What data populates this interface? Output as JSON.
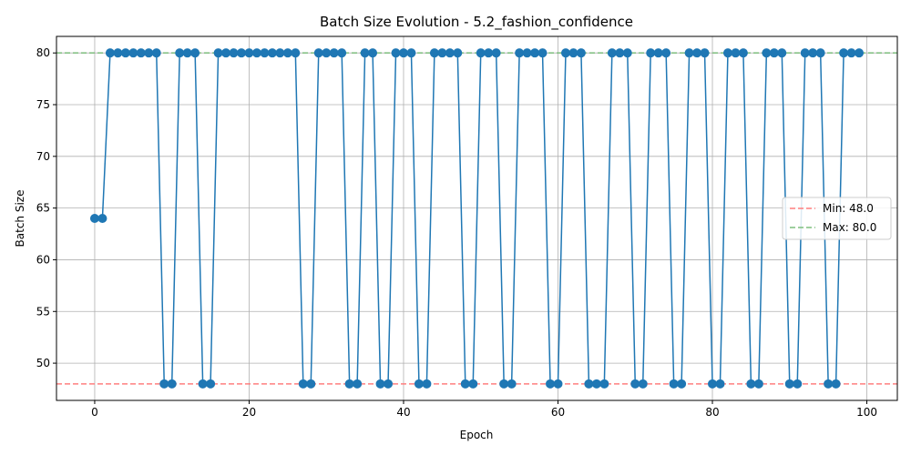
{
  "chart_data": {
    "type": "line",
    "title": "Batch Size Evolution - 5.2_fashion_confidence",
    "xlabel": "Epoch",
    "ylabel": "Batch Size",
    "xlim": [
      -4.95,
      103.95
    ],
    "ylim": [
      46.4,
      81.6
    ],
    "x_ticks": [
      0,
      20,
      40,
      60,
      80,
      100
    ],
    "y_ticks": [
      50,
      55,
      60,
      65,
      70,
      75,
      80
    ],
    "grid": true,
    "legend_position": "center-right",
    "series": [
      {
        "color": "#1f77b4",
        "marker": "circle",
        "x": [
          0,
          1,
          2,
          3,
          4,
          5,
          6,
          7,
          8,
          9,
          10,
          11,
          12,
          13,
          14,
          15,
          16,
          17,
          18,
          19,
          20,
          21,
          22,
          23,
          24,
          25,
          26,
          27,
          28,
          29,
          30,
          31,
          32,
          33,
          34,
          35,
          36,
          37,
          38,
          39,
          40,
          41,
          42,
          43,
          44,
          45,
          46,
          47,
          48,
          49,
          50,
          51,
          52,
          53,
          54,
          55,
          56,
          57,
          58,
          59,
          60,
          61,
          62,
          63,
          64,
          65,
          66,
          67,
          68,
          69,
          70,
          71,
          72,
          73,
          74,
          75,
          76,
          77,
          78,
          79,
          80,
          81,
          82,
          83,
          84,
          85,
          86,
          87,
          88,
          89,
          90,
          91,
          92,
          93,
          94,
          95,
          96,
          97,
          98,
          99
        ],
        "values": [
          64,
          64,
          80,
          80,
          80,
          80,
          80,
          80,
          80,
          48,
          48,
          80,
          80,
          80,
          48,
          48,
          80,
          80,
          80,
          80,
          80,
          80,
          80,
          80,
          80,
          80,
          80,
          48,
          48,
          80,
          80,
          80,
          80,
          48,
          48,
          80,
          80,
          48,
          48,
          80,
          80,
          80,
          48,
          48,
          80,
          80,
          80,
          80,
          48,
          48,
          80,
          80,
          80,
          48,
          48,
          80,
          80,
          80,
          80,
          48,
          48,
          80,
          80,
          80,
          48,
          48,
          48,
          80,
          80,
          80,
          48,
          48,
          80,
          80,
          80,
          48,
          48,
          80,
          80,
          80,
          48,
          48,
          80,
          80,
          80,
          48,
          48,
          80,
          80,
          80,
          48,
          48,
          80,
          80,
          80,
          48,
          48,
          80,
          80,
          80
        ]
      }
    ],
    "reference_lines": [
      {
        "label": "Min: 48.0",
        "value": 48,
        "color": "#ff7f7f",
        "style": "dashed"
      },
      {
        "label": "Max: 80.0",
        "value": 80,
        "color": "#7fbf7f",
        "style": "dashed"
      }
    ],
    "colors": {
      "grid": "#b0b0b0",
      "axis": "#000000",
      "marker_edge": "#1f77b4"
    }
  }
}
